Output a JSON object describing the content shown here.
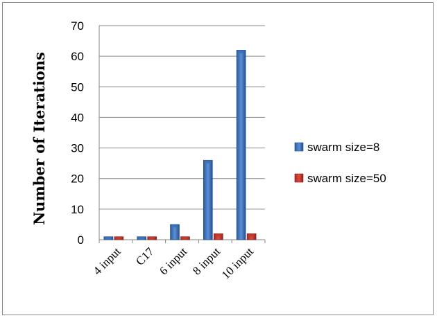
{
  "chart_data": {
    "type": "bar",
    "title": "",
    "xlabel": "",
    "ylabel": "Number of Iterations",
    "categories": [
      "4 input",
      "C17",
      "6 input",
      "8 input",
      "10 input"
    ],
    "series": [
      {
        "name": "swarm size=8",
        "values": [
          1,
          1,
          5,
          26,
          62
        ],
        "color": "#3b6eb5"
      },
      {
        "name": "swarm size=50",
        "values": [
          1,
          1,
          1,
          2,
          2
        ],
        "color": "#c0392b"
      }
    ],
    "ylim": [
      0,
      70
    ],
    "yticks": [
      0,
      10,
      20,
      30,
      40,
      50,
      60,
      70
    ],
    "grid": true,
    "legend_position": "right"
  }
}
